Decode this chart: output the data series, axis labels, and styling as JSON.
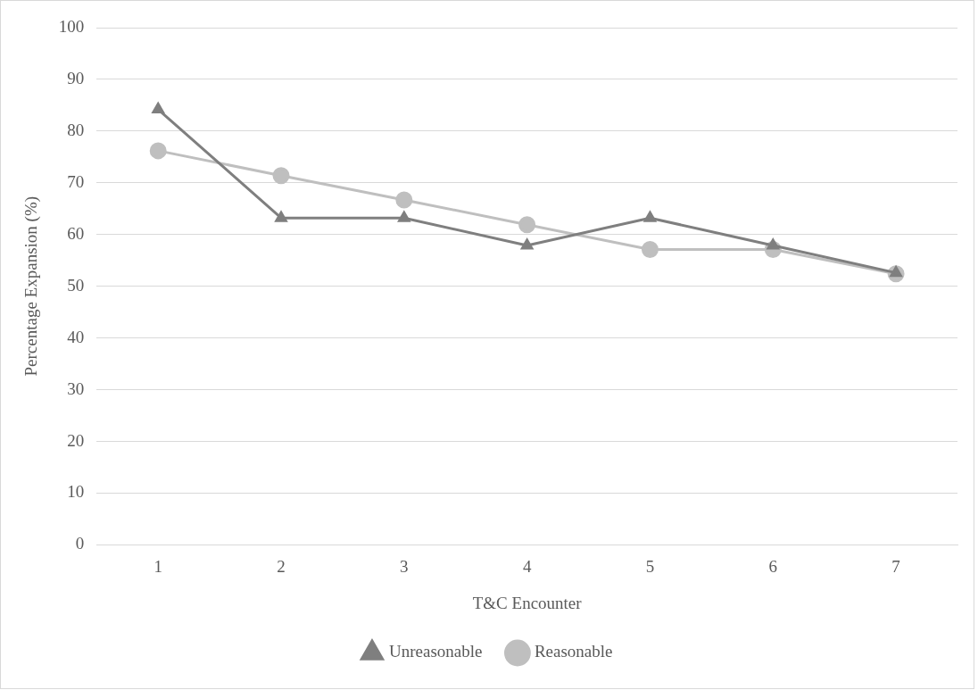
{
  "chart_data": {
    "type": "line",
    "xlabel": "T&C Encounter",
    "ylabel": "Percentage Expansion (%)",
    "categories": [
      "1",
      "2",
      "3",
      "4",
      "5",
      "6",
      "7"
    ],
    "series": [
      {
        "name": "Unreasonable",
        "color": "#7f7f7f",
        "marker": "triangle",
        "values": [
          84.2,
          63.2,
          63.2,
          57.9,
          63.2,
          57.9,
          52.6
        ]
      },
      {
        "name": "Reasonable",
        "color": "#bfbfbf",
        "marker": "circle",
        "values": [
          76.2,
          71.4,
          66.7,
          61.9,
          57.1,
          57.1,
          52.4
        ]
      }
    ],
    "ylim": [
      0,
      100
    ],
    "yticks": [
      0,
      10,
      20,
      30,
      40,
      50,
      60,
      70,
      80,
      90,
      100
    ],
    "grid": "y",
    "legend": "bottom",
    "line_style": "solid"
  }
}
